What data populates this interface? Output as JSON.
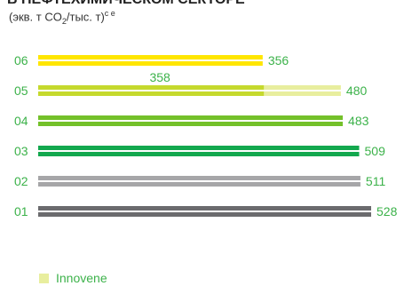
{
  "header": {
    "title": "В НЕФТЕХИМИЧЕСКОМ СЕКТОРЕ",
    "subtitle_prefix": "(экв. т CO",
    "subtitle_sub": "2",
    "subtitle_suffix": "/тыс. т)",
    "subtitle_sup": "c e"
  },
  "chart_data": {
    "type": "bar",
    "orientation": "horizontal",
    "categories": [
      "06",
      "05",
      "04",
      "03",
      "02",
      "01"
    ],
    "values": [
      356,
      480,
      483,
      509,
      511,
      528
    ],
    "colors": [
      "#ffe600",
      "#c5d92d",
      "#74c12a",
      "#13a84e",
      "#a6a6a8",
      "#6b6b6e"
    ],
    "label_color": "#3cb24a",
    "annotations": [
      {
        "category": "05",
        "value": 358,
        "label": "358",
        "series": "Innovene"
      }
    ],
    "legend": [
      {
        "name": "Innovene",
        "color": "#e8ee9e"
      }
    ],
    "xlim": [
      0,
      528
    ],
    "grid": false
  }
}
